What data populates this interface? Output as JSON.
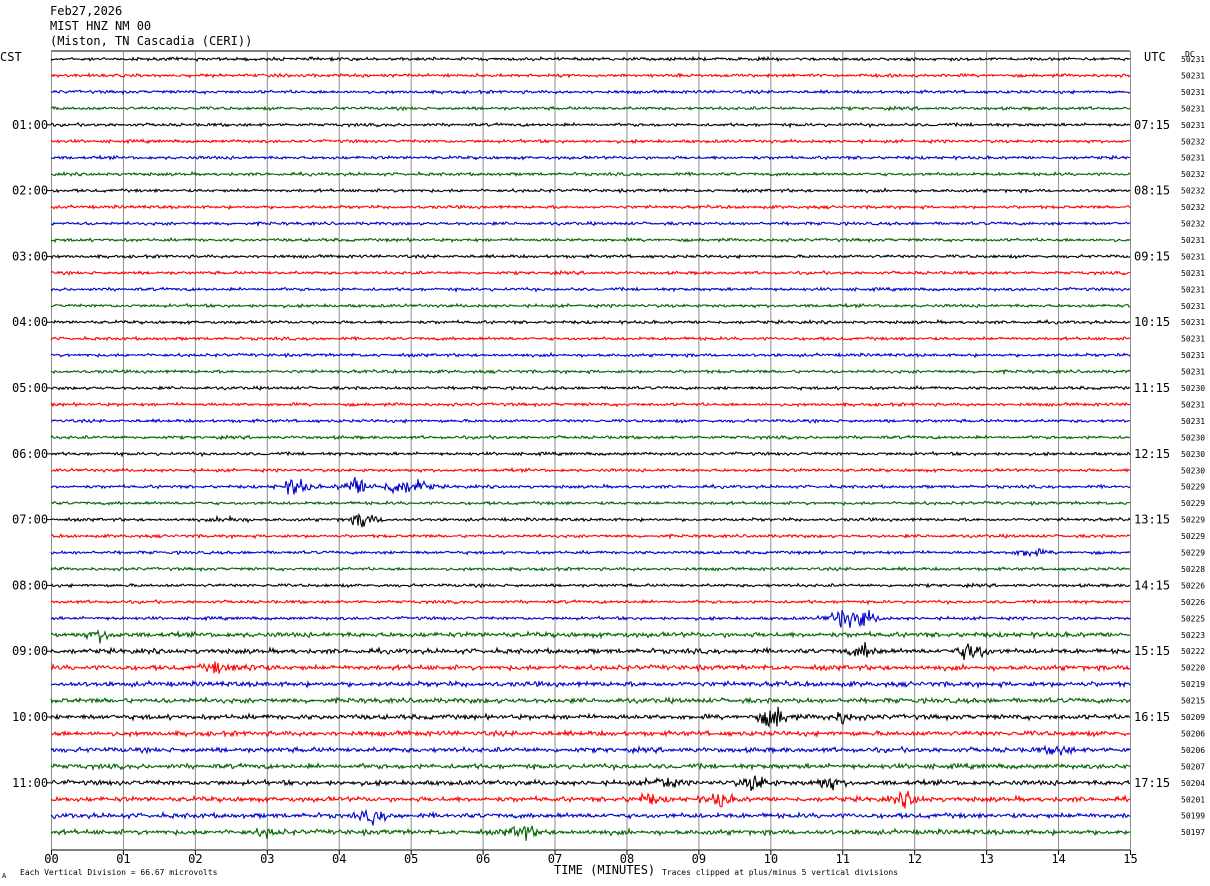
{
  "header": {
    "date": "Feb27,2026",
    "station": "MIST HNZ NM 00",
    "location": "(Miston, TN Cascadia (CERI))"
  },
  "chart_data": {
    "type": "line",
    "title": "MIST HNZ NM 00",
    "xlabel": "TIME (MINUTES)",
    "x_ticks": [
      "00",
      "01",
      "02",
      "03",
      "04",
      "05",
      "06",
      "07",
      "08",
      "09",
      "10",
      "11",
      "12",
      "13",
      "14",
      "15"
    ],
    "xlim": [
      0,
      15
    ],
    "left_axis_label": "CST",
    "right_axis_label": "UTC",
    "dc_label": "DC",
    "left_hour_labels": [
      "01:00",
      "02:00",
      "03:00",
      "04:00",
      "05:00",
      "06:00",
      "07:00",
      "08:00",
      "09:00",
      "10:00",
      "11:00"
    ],
    "right_hour_labels": [
      "07:15",
      "08:15",
      "09:15",
      "10:15",
      "11:15",
      "12:15",
      "13:15",
      "14:15",
      "15:15",
      "16:15",
      "17:15"
    ],
    "trace_colors": [
      "#000000",
      "#ff0000",
      "#0000cc",
      "#006400"
    ],
    "dc_values": [
      50231,
      50231,
      50231,
      50231,
      50231,
      50232,
      50231,
      50232,
      50232,
      50232,
      50232,
      50231,
      50231,
      50231,
      50231,
      50231,
      50231,
      50231,
      50231,
      50231,
      50230,
      50231,
      50231,
      50230,
      50230,
      50230,
      50229,
      50229,
      50229,
      50229,
      50229,
      50228,
      50226,
      50226,
      50225,
      50223,
      50222,
      50220,
      50219,
      50215,
      50209,
      50206,
      50206,
      50207,
      50204,
      50201,
      50199,
      50197
    ],
    "events": [
      {
        "trace": 26,
        "minute": 3.4,
        "amp": 6
      },
      {
        "trace": 26,
        "minute": 4.25,
        "amp": 6
      },
      {
        "trace": 26,
        "minute": 4.8,
        "amp": 5
      },
      {
        "trace": 26,
        "minute": 5.1,
        "amp": 4
      },
      {
        "trace": 28,
        "minute": 4.35,
        "amp": 5
      },
      {
        "trace": 28,
        "minute": 2.5,
        "amp": 2
      },
      {
        "trace": 30,
        "minute": 13.6,
        "amp": 3
      },
      {
        "trace": 34,
        "minute": 11.0,
        "amp": 6
      },
      {
        "trace": 34,
        "minute": 11.3,
        "amp": 5
      },
      {
        "trace": 35,
        "minute": 0.7,
        "amp": 3
      },
      {
        "trace": 36,
        "minute": 12.8,
        "amp": 7
      },
      {
        "trace": 36,
        "minute": 11.3,
        "amp": 4
      },
      {
        "trace": 37,
        "minute": 2.3,
        "amp": 3
      },
      {
        "trace": 37,
        "minute": 2.8,
        "amp": 2
      },
      {
        "trace": 40,
        "minute": 10.05,
        "amp": 8
      },
      {
        "trace": 40,
        "minute": 11.0,
        "amp": 3
      },
      {
        "trace": 42,
        "minute": 14.0,
        "amp": 3
      },
      {
        "trace": 44,
        "minute": 8.5,
        "amp": 4
      },
      {
        "trace": 44,
        "minute": 9.8,
        "amp": 5
      },
      {
        "trace": 44,
        "minute": 10.8,
        "amp": 4
      },
      {
        "trace": 45,
        "minute": 8.3,
        "amp": 3
      },
      {
        "trace": 45,
        "minute": 9.3,
        "amp": 4
      },
      {
        "trace": 45,
        "minute": 11.9,
        "amp": 4
      },
      {
        "trace": 46,
        "minute": 4.5,
        "amp": 4
      },
      {
        "trace": 47,
        "minute": 6.55,
        "amp": 5
      },
      {
        "trace": 47,
        "minute": 3.0,
        "amp": 2
      }
    ]
  },
  "footer": {
    "vertical_division": "Each Vertical Division =   66.67 microvolts",
    "clip_note": "Traces clipped at plus/minus 5 vertical divisions",
    "mark": "A"
  }
}
